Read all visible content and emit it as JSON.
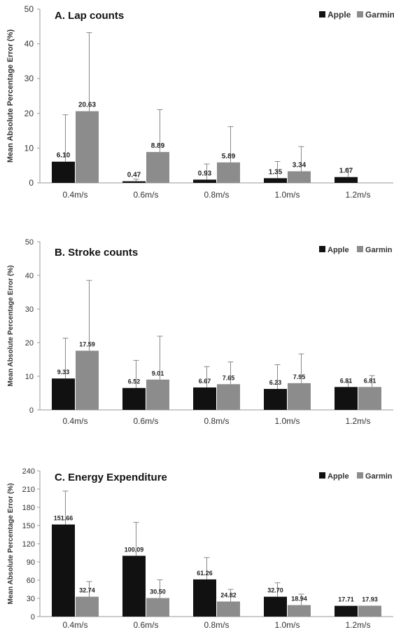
{
  "figure": {
    "ylabel": "Mean Absolute Percentage Error (%)"
  },
  "chart_data": [
    {
      "type": "bar",
      "title": "A. Lap counts",
      "xlabel": "",
      "ylabel": "Mean Absolute Percentage Error (%)",
      "categories": [
        "0.4m/s",
        "0.6m/s",
        "0.8m/s",
        "1.0m/s",
        "1.2m/s"
      ],
      "ylim": [
        0,
        50
      ],
      "yticks": [
        0,
        10,
        20,
        30,
        40,
        50
      ],
      "legend": "top-right",
      "grid": false,
      "series": [
        {
          "name": "Apple",
          "color": "#111111",
          "values": [
            6.1,
            0.47,
            0.93,
            1.35,
            1.67
          ],
          "errors": [
            13.5,
            0.6,
            4.5,
            4.8,
            2.4
          ],
          "labels": [
            "6.10",
            "0.47",
            "0.93",
            "1.35",
            "1.67"
          ]
        },
        {
          "name": "Garmin",
          "color": "#8c8c8c",
          "values": [
            20.63,
            8.89,
            5.89,
            3.34,
            null
          ],
          "errors": [
            22.6,
            12.2,
            10.3,
            7.1,
            null
          ],
          "labels": [
            "20.63",
            "8.89",
            "5.89",
            "3.34",
            ""
          ]
        }
      ]
    },
    {
      "type": "bar",
      "title": "B. Stroke counts",
      "xlabel": "",
      "ylabel": "Mean Absolute Percentage Error (%)",
      "categories": [
        "0.4m/s",
        "0.6m/s",
        "0.8m/s",
        "1.0m/s",
        "1.2m/s"
      ],
      "ylim": [
        0,
        50
      ],
      "yticks": [
        0,
        10,
        20,
        30,
        40,
        50
      ],
      "legend": "top-right",
      "grid": false,
      "series": [
        {
          "name": "Apple",
          "color": "#111111",
          "values": [
            9.33,
            6.52,
            6.67,
            6.23,
            6.81
          ],
          "errors": [
            12.0,
            8.2,
            6.2,
            7.2,
            1.5
          ],
          "labels": [
            "9.33",
            "6.52",
            "6.67",
            "6.23",
            "6.81"
          ]
        },
        {
          "name": "Garmin",
          "color": "#8c8c8c",
          "values": [
            17.59,
            9.01,
            7.65,
            7.95,
            6.81
          ],
          "errors": [
            20.9,
            12.9,
            6.6,
            8.7,
            3.4
          ],
          "labels": [
            "17.59",
            "9.01",
            "7.65",
            "7.95",
            "6.81"
          ]
        }
      ]
    },
    {
      "type": "bar",
      "title": "C. Energy Expenditure",
      "xlabel": "",
      "ylabel": "Mean Absolute Percentage Error (%)",
      "categories": [
        "0.4m/s",
        "0.6m/s",
        "0.8m/s",
        "1.0m/s",
        "1.2m/s"
      ],
      "ylim": [
        0,
        240
      ],
      "yticks": [
        0,
        30,
        60,
        90,
        120,
        150,
        180,
        210,
        240
      ],
      "legend": "top-right",
      "grid": false,
      "series": [
        {
          "name": "Apple",
          "color": "#111111",
          "values": [
            151.66,
            100.09,
            61.26,
            32.7,
            17.71
          ],
          "errors": [
            55,
            55,
            36,
            23,
            0
          ],
          "labels": [
            "151.66",
            "100.09",
            "61.26",
            "32.70",
            "17.71"
          ]
        },
        {
          "name": "Garmin",
          "color": "#8c8c8c",
          "values": [
            32.74,
            30.5,
            24.82,
            18.94,
            17.93
          ],
          "errors": [
            25,
            30,
            20,
            18,
            0
          ],
          "labels": [
            "32.74",
            "30.50",
            "24.82",
            "18.94",
            "17.93"
          ]
        }
      ]
    }
  ]
}
